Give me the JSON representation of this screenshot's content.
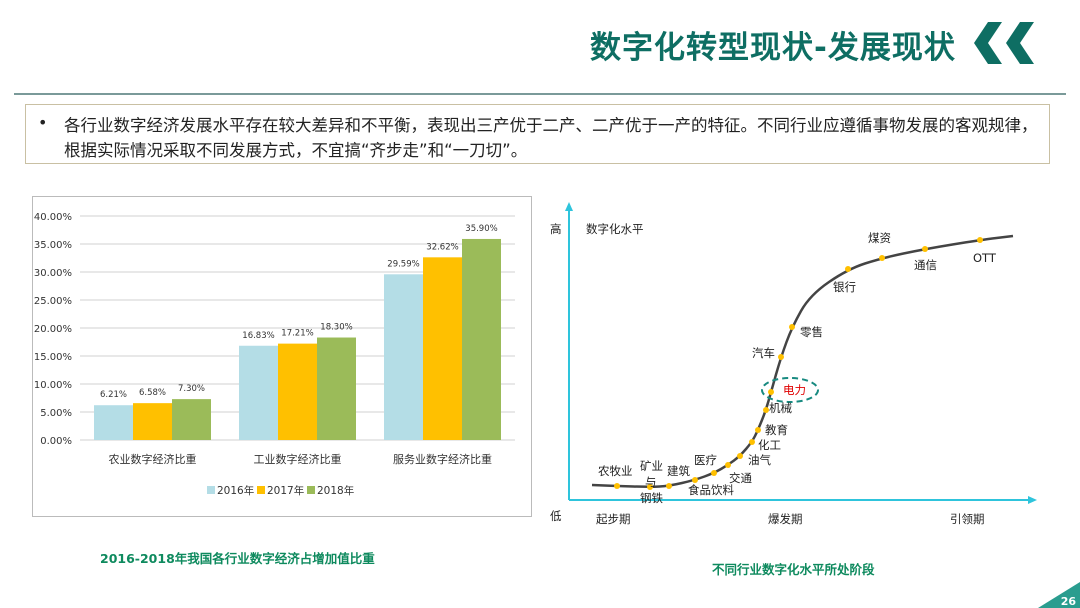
{
  "header": {
    "title": "数字化转型现状-发展现状",
    "accent_color": "#0e6e63"
  },
  "summary": {
    "bullet": "•",
    "text": "各行业数字经济发展水平存在较大差异和不平衡，表现出三产优于二产、二产优于一产的特征。不同行业应遵循事物发展的客观规律，根据实际情况采取不同发展方式，不宜搞“齐步走”和“一刀切”。"
  },
  "chart_data": {
    "type": "bar",
    "categories": [
      "农业数字经济比重",
      "工业数字经济比重",
      "服务业数字经济比重"
    ],
    "series": [
      {
        "name": "2016年",
        "values": [
          6.21,
          16.83,
          29.59
        ],
        "labels": [
          "6.21%",
          "16.83%",
          "29.59%"
        ],
        "color": "#b4dde6"
      },
      {
        "name": "2017年",
        "values": [
          6.58,
          17.21,
          32.62
        ],
        "labels": [
          "6.58%",
          "17.21%",
          "32.62%"
        ],
        "color": "#ffc000"
      },
      {
        "name": "2018年",
        "values": [
          7.3,
          18.3,
          35.9
        ],
        "labels": [
          "7.30%",
          "18.30%",
          "35.90%"
        ],
        "color": "#9bbb59"
      }
    ],
    "ylim": [
      0,
      40
    ],
    "yticks": [
      "0.00%",
      "5.00%",
      "10.00%",
      "15.00%",
      "20.00%",
      "25.00%",
      "30.00%",
      "35.00%",
      "40.00%"
    ],
    "grid": true,
    "legend": "bottom",
    "title": "",
    "xlabel": "",
    "ylabel": ""
  },
  "left_caption": "2016-2018年我国各行业数字经济占增加值比重",
  "diagram": {
    "y_high": "高",
    "y_low": "低",
    "y_label": "数字化水平",
    "stages": [
      "起步期",
      "爆发期",
      "引领期"
    ],
    "industries": [
      "农牧业",
      "矿业",
      "与",
      "钢铁",
      "建筑",
      "医疗",
      "食品饮料",
      "交通",
      "油气",
      "化工",
      "教育",
      "机械",
      "电力",
      "汽车",
      "零售",
      "银行",
      "煤资",
      "通信",
      "OTT"
    ],
    "highlighted": "电力",
    "highlight_color": "#e00000",
    "axis_color": "#2ec4dc",
    "dot_color": "#ffc000",
    "caption": "不同行业数字化水平所处阶段"
  },
  "page_number": "26"
}
